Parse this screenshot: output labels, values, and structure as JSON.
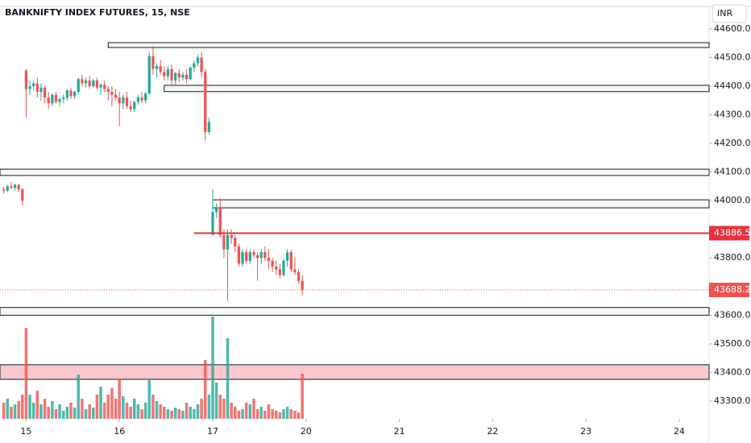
{
  "chart_data": {
    "type": "candlestick",
    "title": "BANKNIFTY INDEX FUTURES, 15, NSE",
    "currency": "INR",
    "up_color": "#26a69a",
    "down_color": "#ef5350",
    "xlim": [
      -7,
      183
    ],
    "ylim": [
      43238,
      44701
    ],
    "xticks": [
      {
        "value": 0,
        "label": "15"
      },
      {
        "value": 25,
        "label": "16"
      },
      {
        "value": 50,
        "label": "17"
      },
      {
        "value": 75,
        "label": "20"
      },
      {
        "value": 100,
        "label": "21"
      },
      {
        "value": 125,
        "label": "22"
      },
      {
        "value": 150,
        "label": "23"
      },
      {
        "value": 175,
        "label": "24"
      }
    ],
    "yticks": [
      {
        "value": 44600,
        "label": "44600.00"
      },
      {
        "value": 44500,
        "label": "44500.00"
      },
      {
        "value": 44400,
        "label": "44400.00"
      },
      {
        "value": 44300,
        "label": "44300.00"
      },
      {
        "value": 44200,
        "label": "44200.00"
      },
      {
        "value": 44100,
        "label": "44100.00"
      },
      {
        "value": 44000,
        "label": "44000.00"
      },
      {
        "value": 43800,
        "label": "43800.00"
      },
      {
        "value": 43600,
        "label": "43600.00"
      },
      {
        "value": 43500,
        "label": "43500.00"
      },
      {
        "value": 43400,
        "label": "43400.00"
      },
      {
        "value": 43300,
        "label": "43300.00"
      }
    ],
    "x": [
      -6,
      -5,
      -4,
      -3,
      -2,
      -1,
      0,
      1,
      2,
      3,
      4,
      5,
      6,
      7,
      8,
      9,
      10,
      11,
      12,
      13,
      14,
      15,
      16,
      17,
      18,
      19,
      20,
      21,
      22,
      23,
      24,
      25,
      26,
      27,
      28,
      29,
      30,
      31,
      32,
      33,
      34,
      35,
      36,
      37,
      38,
      39,
      40,
      41,
      42,
      43,
      44,
      45,
      46,
      47,
      48,
      49,
      50,
      51,
      52,
      53,
      54,
      55,
      56,
      57,
      58,
      59,
      60,
      61,
      62,
      63,
      64,
      65,
      66,
      67,
      68,
      69,
      70,
      71,
      72,
      73,
      74
    ],
    "candles": [
      [
        44040,
        44050,
        44025,
        44035
      ],
      [
        44035,
        44055,
        44030,
        44050
      ],
      [
        44050,
        44065,
        44040,
        44045
      ],
      [
        44045,
        44060,
        44035,
        44055
      ],
      [
        44055,
        44060,
        44030,
        44040
      ],
      [
        44040,
        44045,
        43985,
        44000
      ],
      [
        44455,
        44460,
        44290,
        44390
      ],
      [
        44390,
        44420,
        44370,
        44400
      ],
      [
        44400,
        44420,
        44385,
        44410
      ],
      [
        44410,
        44430,
        44360,
        44380
      ],
      [
        44380,
        44410,
        44350,
        44395
      ],
      [
        44395,
        44400,
        44340,
        44360
      ],
      [
        44360,
        44380,
        44320,
        44340
      ],
      [
        44340,
        44375,
        44330,
        44370
      ],
      [
        44370,
        44380,
        44340,
        44345
      ],
      [
        44345,
        44360,
        44330,
        44355
      ],
      [
        44355,
        44370,
        44340,
        44360
      ],
      [
        44360,
        44390,
        44350,
        44385
      ],
      [
        44385,
        44395,
        44355,
        44365
      ],
      [
        44365,
        44385,
        44355,
        44380
      ],
      [
        44380,
        44430,
        44370,
        44425
      ],
      [
        44425,
        44440,
        44400,
        44410
      ],
      [
        44410,
        44430,
        44395,
        44420
      ],
      [
        44420,
        44435,
        44390,
        44400
      ],
      [
        44400,
        44425,
        44395,
        44420
      ],
      [
        44420,
        44430,
        44390,
        44395
      ],
      [
        44395,
        44410,
        44370,
        44405
      ],
      [
        44405,
        44420,
        44380,
        44390
      ],
      [
        44390,
        44400,
        44350,
        44380
      ],
      [
        44380,
        44400,
        44330,
        44370
      ],
      [
        44370,
        44390,
        44350,
        44360
      ],
      [
        44360,
        44380,
        44260,
        44340
      ],
      [
        44340,
        44370,
        44320,
        44360
      ],
      [
        44360,
        44380,
        44320,
        44330
      ],
      [
        44330,
        44350,
        44310,
        44320
      ],
      [
        44320,
        44350,
        44310,
        44345
      ],
      [
        44345,
        44370,
        44335,
        44360
      ],
      [
        44360,
        44380,
        44340,
        44350
      ],
      [
        44350,
        44380,
        44340,
        44375
      ],
      [
        44375,
        44520,
        44370,
        44505
      ],
      [
        44505,
        44540,
        44440,
        44460
      ],
      [
        44460,
        44480,
        44430,
        44470
      ],
      [
        44470,
        44490,
        44440,
        44450
      ],
      [
        44450,
        44470,
        44420,
        44435
      ],
      [
        44435,
        44470,
        44420,
        44460
      ],
      [
        44460,
        44475,
        44400,
        44420
      ],
      [
        44420,
        44450,
        44400,
        44445
      ],
      [
        44445,
        44460,
        44415,
        44430
      ],
      [
        44430,
        44450,
        44420,
        44440
      ],
      [
        44440,
        44460,
        44410,
        44425
      ],
      [
        44425,
        44470,
        44420,
        44465
      ],
      [
        44465,
        44490,
        44450,
        44480
      ],
      [
        44480,
        44510,
        44470,
        44500
      ],
      [
        44500,
        44520,
        44430,
        44450
      ],
      [
        44450,
        44460,
        44210,
        44240
      ],
      [
        44240,
        44290,
        44230,
        44275
      ],
      [
        43880,
        44040,
        43880,
        43960
      ],
      [
        43960,
        43990,
        43940,
        43975
      ],
      [
        43975,
        44010,
        43870,
        43880
      ],
      [
        43880,
        43900,
        43800,
        43830
      ],
      [
        43830,
        43900,
        43650,
        43880
      ],
      [
        43880,
        43900,
        43850,
        43870
      ],
      [
        43870,
        43880,
        43820,
        43840
      ],
      [
        43840,
        43850,
        43770,
        43780
      ],
      [
        43780,
        43830,
        43770,
        43820
      ],
      [
        43820,
        43830,
        43780,
        43790
      ],
      [
        43790,
        43830,
        43780,
        43820
      ],
      [
        43820,
        43830,
        43800,
        43810
      ],
      [
        43810,
        43820,
        43720,
        43800
      ],
      [
        43800,
        43830,
        43780,
        43820
      ],
      [
        43820,
        43840,
        43790,
        43800
      ],
      [
        43800,
        43830,
        43760,
        43790
      ],
      [
        43790,
        43800,
        43750,
        43770
      ],
      [
        43770,
        43790,
        43740,
        43760
      ],
      [
        43760,
        43780,
        43730,
        43740
      ],
      [
        43740,
        43800,
        43735,
        43790
      ],
      [
        43790,
        43830,
        43770,
        43820
      ],
      [
        43820,
        43830,
        43750,
        43760
      ],
      [
        43760,
        43800,
        43740,
        43750
      ],
      [
        43750,
        43760,
        43710,
        43720
      ],
      [
        43720,
        43740,
        43670,
        43688.25
      ]
    ],
    "volume": [
      20,
      25,
      15,
      18,
      22,
      30,
      113,
      30,
      20,
      35,
      18,
      25,
      15,
      22,
      12,
      18,
      10,
      15,
      20,
      14,
      55,
      25,
      12,
      18,
      14,
      30,
      40,
      20,
      30,
      38,
      25,
      50,
      28,
      20,
      15,
      25,
      18,
      12,
      20,
      48,
      30,
      22,
      18,
      15,
      12,
      10,
      14,
      12,
      10,
      20,
      15,
      12,
      18,
      25,
      73,
      30,
      127,
      45,
      30,
      25,
      100,
      20,
      15,
      10,
      12,
      20,
      18,
      25,
      12,
      15,
      10,
      18,
      12,
      10,
      8,
      12,
      15,
      12,
      10,
      8,
      56
    ],
    "zones": [
      {
        "top": 44552,
        "bottom": 44535,
        "x0": 22
      },
      {
        "top": 44403,
        "bottom": 44381,
        "x0": 37
      },
      {
        "top": 44110,
        "bottom": 44088,
        "x0": -7
      },
      {
        "top": 44003,
        "bottom": 43975,
        "x0": 50
      },
      {
        "top": 43627,
        "bottom": 43600,
        "x0": -7
      },
      {
        "top": 43427,
        "bottom": 43376,
        "x0": -7,
        "fill": "#f8c8cc"
      }
    ],
    "level": {
      "value": 43886.5,
      "label": "43886.50",
      "x0": 45,
      "color": "#e5323d"
    },
    "last_price": {
      "value": 43688.25,
      "label": "43688.25",
      "color": "#ef5350"
    }
  }
}
